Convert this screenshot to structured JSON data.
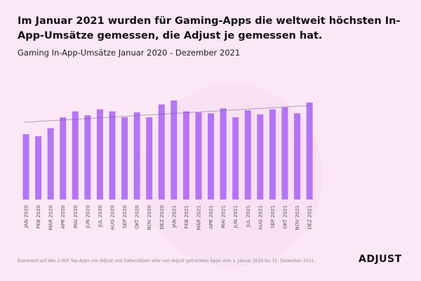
{
  "title": "Im Januar 2021 wurden für Gaming-Apps die weltweit höchsten In-App-Umsätze gemessen, die Adjust je gemessen hat.",
  "subtitle": "Gaming In-App-Umsätze Januar 2020 - Dezember 2021",
  "footnote": "Basierend auf den 2.000 Top-Apps von Adjust und Datensätzen aller von Adjust getrackten Apps vom 1. Januar 2020 bis 31. Dezember 2021.",
  "logo": "ADJUST",
  "colors": {
    "bar": "#b574f6",
    "trend": "#6a5a70",
    "background": "#fbe7f5"
  },
  "chart_data": {
    "type": "bar",
    "categories": [
      "JAN 2020",
      "FEB 2020",
      "MÄR 2020",
      "APR 2020",
      "MAI 2020",
      "JUN 2020",
      "JUL 2020",
      "AUG 2020",
      "SEP 2020",
      "OKT 2020",
      "NOV 2020",
      "DEZ 2020",
      "JAN 2021",
      "FEB 2021",
      "MÄR 2021",
      "APR 2021",
      "MAI 2021",
      "JUN 2021",
      "JUL 2021",
      "AUG 2021",
      "SEP 2021",
      "OKT 2021",
      "NOV 2021",
      "DEZ 2021"
    ],
    "values": [
      66,
      64,
      72,
      83,
      89,
      85,
      91,
      89,
      83,
      88,
      83,
      96,
      100,
      89,
      88,
      87,
      92,
      83,
      90,
      86,
      91,
      93,
      87,
      98
    ],
    "trendline": {
      "start": 78,
      "end": 95,
      "style": "dotted"
    },
    "ylim": [
      0,
      100
    ],
    "y_axis_shown": false,
    "grid": false
  }
}
